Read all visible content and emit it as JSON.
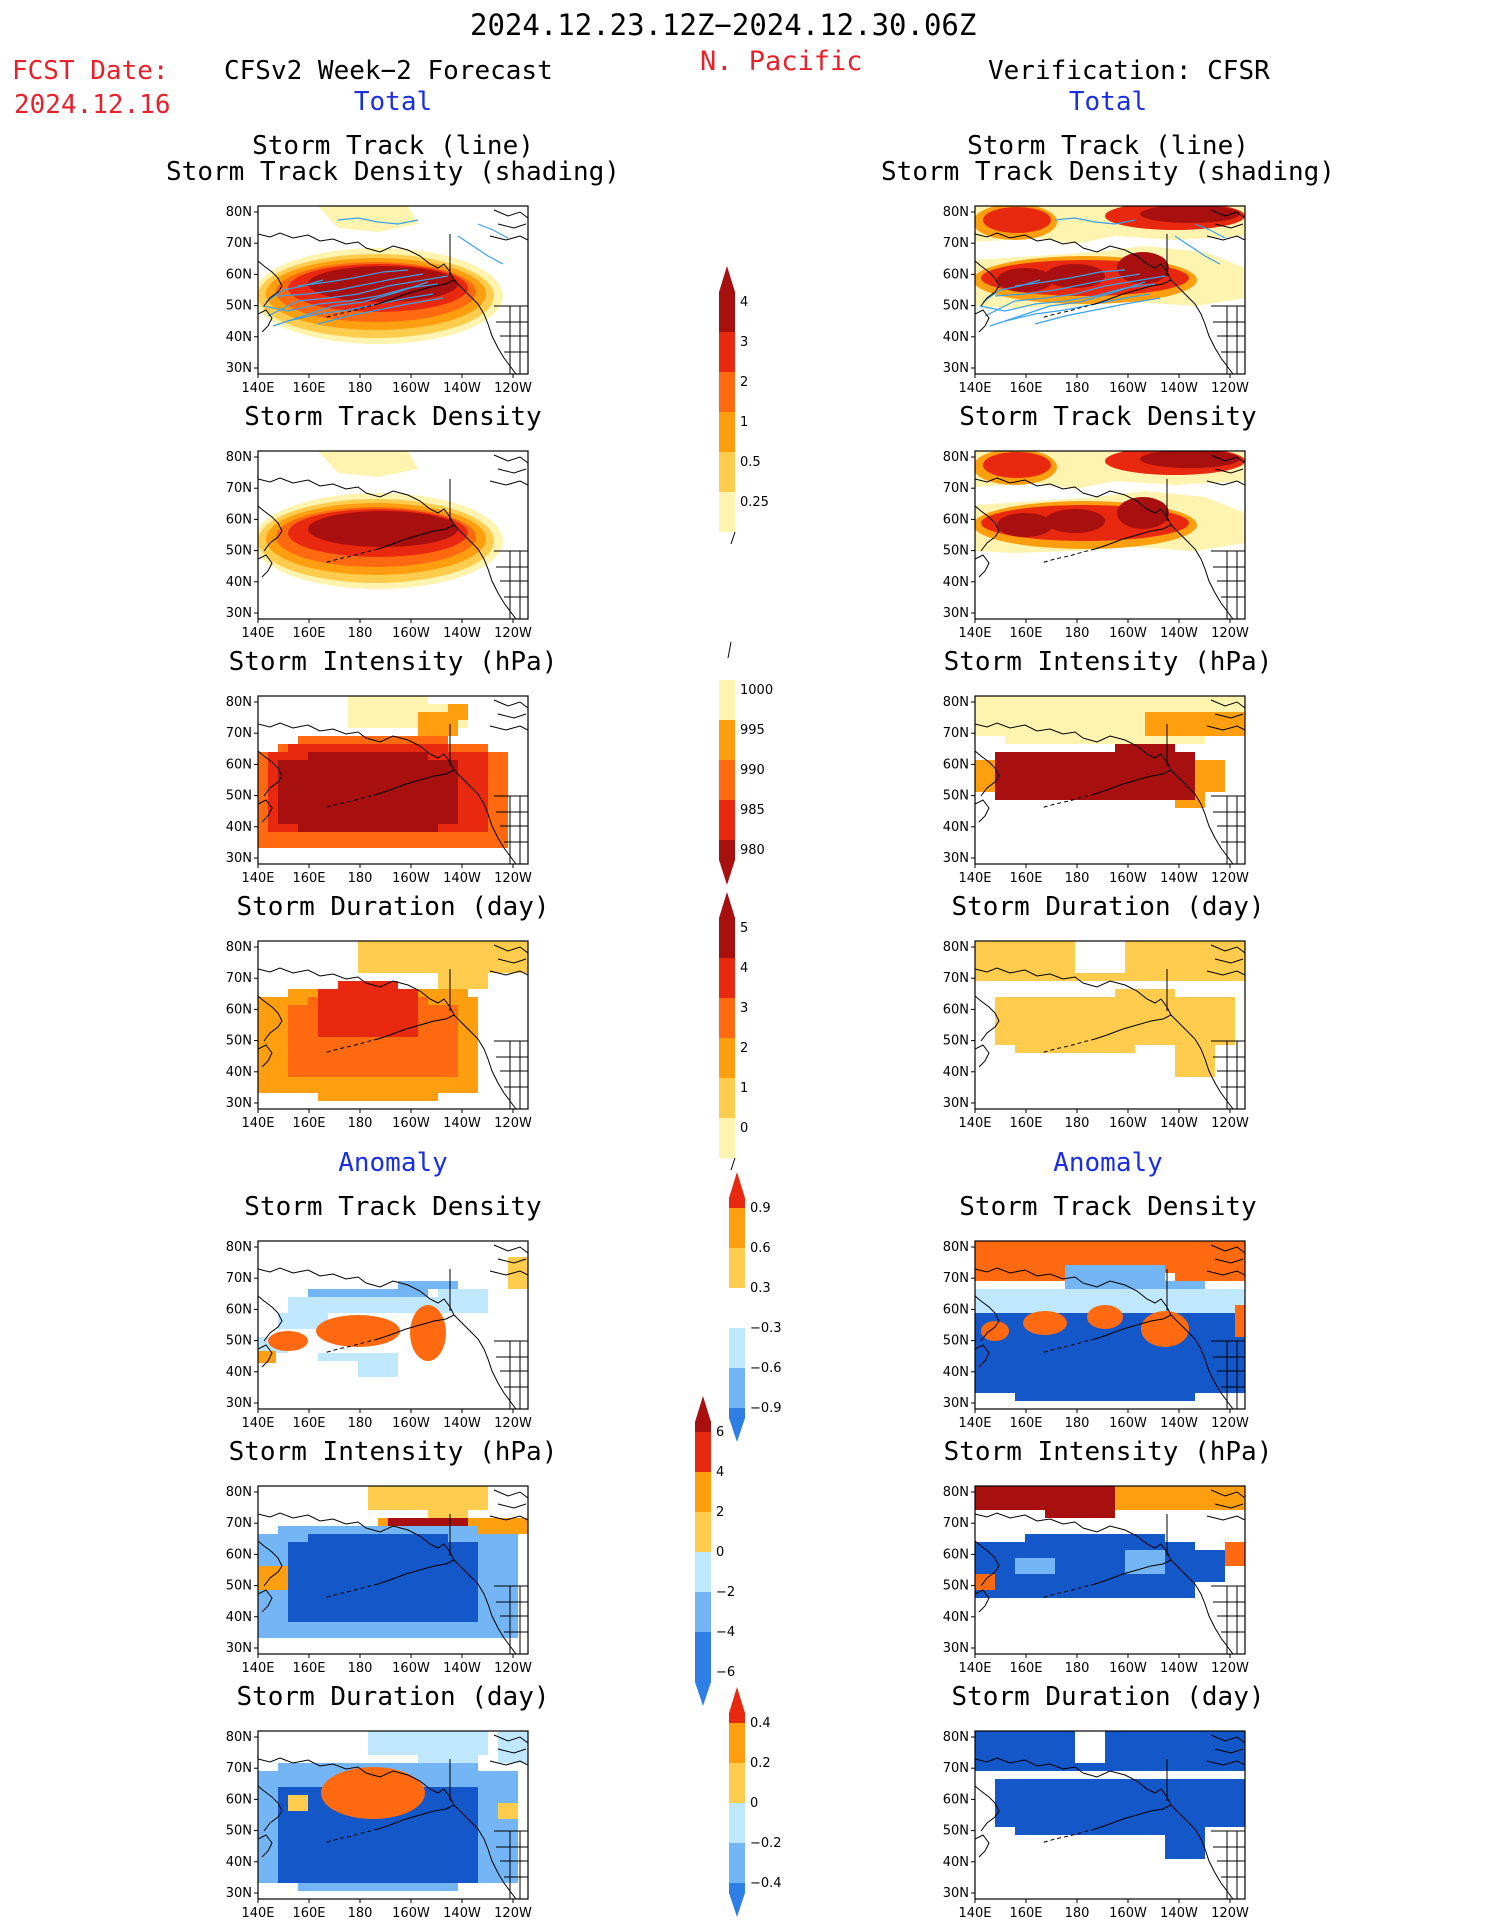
{
  "header": {
    "period": "2024.12.23.12Z−2024.12.30.06Z",
    "region": "N. Pacific",
    "fcst_label": "FCST Date:",
    "fcst_date": "2024.12.16",
    "left_title": "CFSv2 Week−2 Forecast",
    "right_title": "Verification: CFSR"
  },
  "sections": {
    "total": "Total",
    "anomaly": "Anomaly"
  },
  "panel_titles": {
    "storm_track_line": "Storm Track (line)",
    "storm_track_density_shading": "Storm Track Density (shading)",
    "storm_track_density": "Storm Track Density",
    "storm_intensity": "Storm Intensity (hPa)",
    "storm_duration": "Storm Duration (day)"
  },
  "axes": {
    "lat_labels": [
      "80N",
      "70N",
      "60N",
      "50N",
      "40N",
      "30N"
    ],
    "lon_labels": [
      "140E",
      "160E",
      "180",
      "160W",
      "140W",
      "120W"
    ]
  },
  "colors": {
    "pale_yellow": "#fff3b0",
    "light_orange": "#ffcc4d",
    "orange": "#ff9f10",
    "dark_orange": "#ff6a10",
    "red": "#e8280f",
    "dark_red": "#a80f0f",
    "pale_blue": "#bfe8ff",
    "mid_blue": "#74b6f5",
    "blue": "#2f7ee6",
    "dark_blue": "#1457c8",
    "track_line": "#3aa0e8"
  },
  "colorbars": {
    "density": [
      "4",
      "3",
      "2",
      "1",
      "0.5",
      "0.25"
    ],
    "intensity": [
      "1000",
      "995",
      "990",
      "985",
      "980"
    ],
    "duration": [
      "5",
      "4",
      "3",
      "2",
      "1",
      "0"
    ],
    "density_anom": [
      "0.9",
      "0.6",
      "0.3",
      "−0.3",
      "−0.6",
      "−0.9"
    ],
    "intensity_anom": [
      "6",
      "4",
      "2",
      "0",
      "−2",
      "−4",
      "−6"
    ],
    "duration_anom": [
      "0.4",
      "0.2",
      "0",
      "−0.2",
      "−0.4"
    ]
  }
}
